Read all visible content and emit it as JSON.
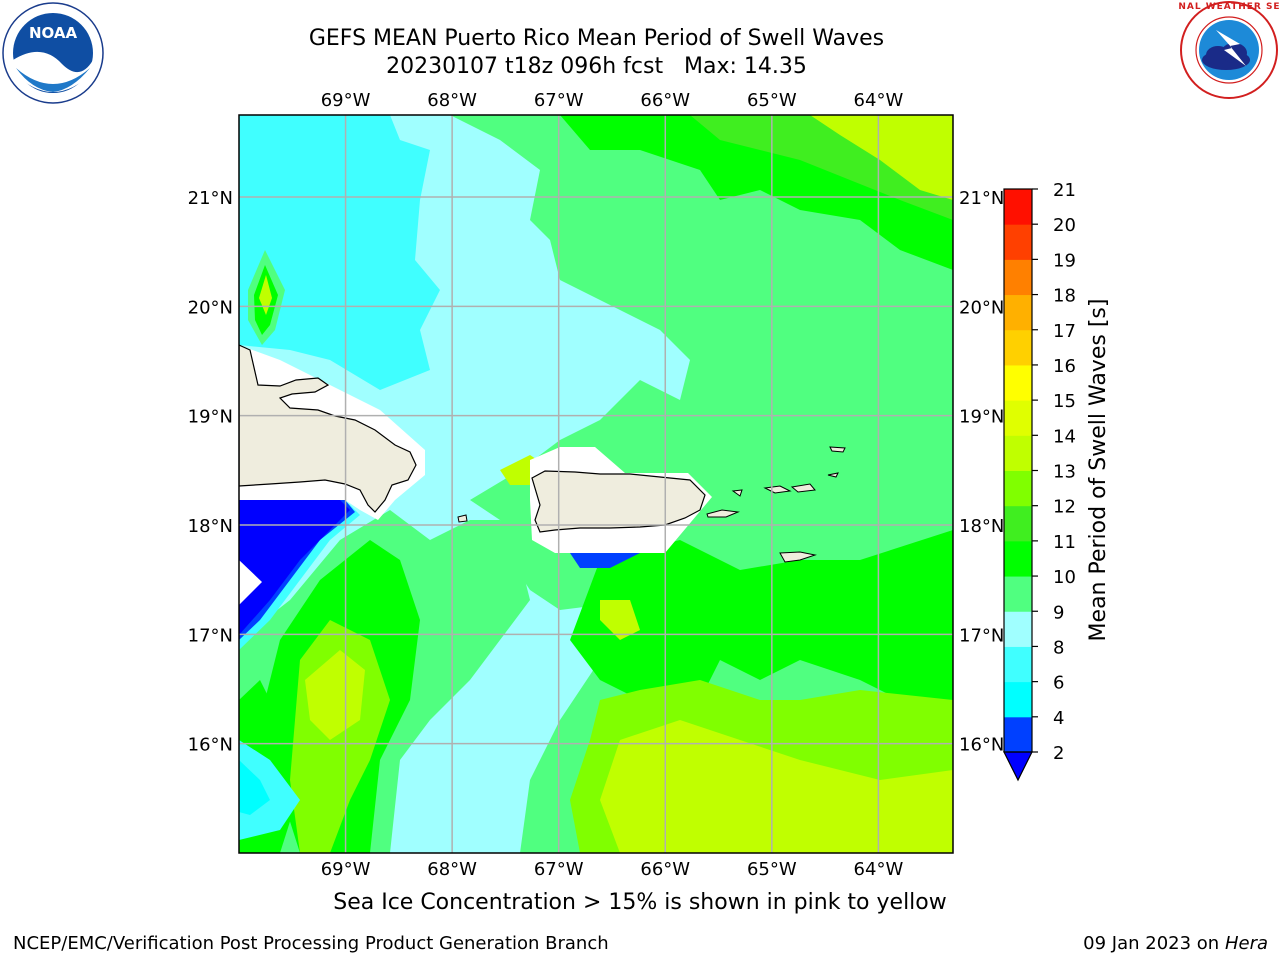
{
  "header": {
    "title_line1": "GEFS MEAN Puerto Rico Mean Period of Swell Waves",
    "title_line2": "20230107 t18z 096h fcst   Max: 14.35"
  },
  "logos": {
    "left": "noaa-logo",
    "left_text": "NOAA",
    "right": "nws-logo",
    "right_text": "NATIONAL WEATHER SERVICE"
  },
  "map": {
    "lon_labels": [
      "69°W",
      "68°W",
      "67°W",
      "66°W",
      "65°W",
      "64°W"
    ],
    "lat_labels": [
      "21°N",
      "20°N",
      "19°N",
      "18°N",
      "17°N",
      "16°N"
    ],
    "lon_values": [
      -69,
      -68,
      -67,
      -66,
      -65,
      -64
    ],
    "lat_values": [
      21,
      20,
      19,
      18,
      17,
      16
    ],
    "extent": {
      "lon": [
        -70.0,
        -63.3
      ],
      "lat": [
        15.0,
        21.75
      ]
    },
    "land_color": "#efedde",
    "grid": true
  },
  "colorbar": {
    "label": "Mean Period of Swell Waves [s]",
    "ticks": [
      "2",
      "4",
      "6",
      "8",
      "9",
      "10",
      "11",
      "12",
      "13",
      "14",
      "15",
      "16",
      "17",
      "18",
      "19",
      "20",
      "21"
    ],
    "colors": [
      "#0040ff",
      "#00ffff",
      "#40ffff",
      "#a0ffff",
      "#50ff80",
      "#00ff00",
      "#40ee20",
      "#80ff00",
      "#c0ff00",
      "#e0ff00",
      "#ffff00",
      "#ffd000",
      "#ffb000",
      "#ff8000",
      "#ff4000",
      "#ff1000"
    ],
    "under_color": "#0000ff"
  },
  "chart_data": {
    "type": "heatmap",
    "title": "GEFS MEAN Puerto Rico Mean Period of Swell Waves",
    "variable": "Mean Period of Swell Waves [s]",
    "max": 14.35,
    "levels": [
      2,
      4,
      6,
      8,
      9,
      10,
      11,
      12,
      13,
      14,
      15,
      16,
      17,
      18,
      19,
      20,
      21
    ]
  },
  "subtitle": "Sea Ice Concentration > 15% is shown in pink to yellow",
  "footer": {
    "left": "NCEP/EMC/Verification Post Processing Product Generation Branch",
    "right_date": "09 Jan 2023 on ",
    "right_machine": "Hera"
  }
}
